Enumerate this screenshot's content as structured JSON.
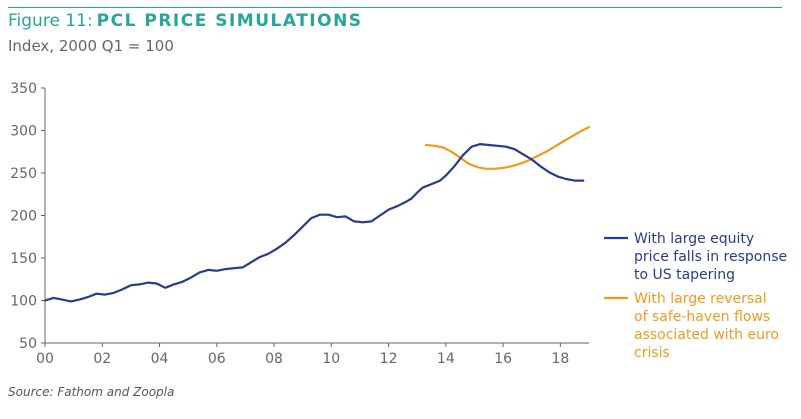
{
  "header": {
    "figure_label": "Figure 11:",
    "title": "PCL PRICE SIMULATIONS",
    "subtitle": "Index, 2000 Q1 = 100"
  },
  "footer": {
    "source": "Source: Fathom and Zoopla"
  },
  "colors": {
    "accent": "#2aa39a",
    "series_equity": "#2a3a8c",
    "series_safe_haven": "#f39a1e",
    "axis": "#666666"
  },
  "chart_data": {
    "type": "line",
    "title": "PCL PRICE SIMULATIONS",
    "xlabel": "",
    "ylabel": "Index, 2000 Q1 = 100",
    "xlim": [
      2000,
      2019
    ],
    "ylim": [
      50,
      350
    ],
    "x_ticks": [
      2000,
      2002,
      2004,
      2006,
      2008,
      2010,
      2012,
      2014,
      2016,
      2018
    ],
    "x_tick_labels": [
      "00",
      "02",
      "04",
      "06",
      "08",
      "10",
      "12",
      "14",
      "16",
      "18"
    ],
    "y_ticks": [
      50,
      100,
      150,
      200,
      250,
      300,
      350
    ],
    "y_tick_labels": [
      "50",
      "100",
      "150",
      "200",
      "250",
      "300",
      "350"
    ],
    "legend_position": "right",
    "series": [
      {
        "name": "With large equity price falls in response to US tapering",
        "legend_lines": [
          "With large equity",
          "price falls in response",
          "to US tapering"
        ],
        "color": "#2a3a8c",
        "x": [
          2000.0,
          2000.3,
          2000.6,
          2000.9,
          2001.2,
          2001.5,
          2001.8,
          2002.1,
          2002.4,
          2002.7,
          2003.0,
          2003.3,
          2003.6,
          2003.9,
          2004.2,
          2004.5,
          2004.8,
          2005.1,
          2005.4,
          2005.7,
          2006.0,
          2006.3,
          2006.6,
          2006.9,
          2007.2,
          2007.5,
          2007.8,
          2008.1,
          2008.4,
          2008.7,
          2009.0,
          2009.3,
          2009.6,
          2009.9,
          2010.2,
          2010.5,
          2010.8,
          2011.1,
          2011.4,
          2011.7,
          2012.0,
          2012.3,
          2012.6,
          2012.8,
          2013.0,
          2013.2,
          2013.5,
          2013.8,
          2014.0,
          2014.3,
          2014.6,
          2014.9,
          2015.2,
          2015.5,
          2015.8,
          2016.1,
          2016.4,
          2016.7,
          2017.0,
          2017.3,
          2017.6,
          2017.9,
          2018.2,
          2018.5,
          2018.8
        ],
        "values": [
          100,
          103,
          101,
          99,
          101,
          104,
          108,
          107,
          109,
          113,
          118,
          119,
          121,
          120,
          115,
          119,
          122,
          127,
          133,
          136,
          135,
          137,
          138,
          139,
          145,
          151,
          155,
          161,
          168,
          177,
          187,
          197,
          201,
          201,
          198,
          199,
          193,
          192,
          193,
          200,
          207,
          211,
          216,
          220,
          227,
          233,
          237,
          241,
          247,
          258,
          271,
          281,
          284,
          283,
          282,
          281,
          278,
          272,
          266,
          258,
          251,
          246,
          243,
          241,
          241
        ]
      },
      {
        "name": "With large reversal of safe-haven flows associated with euro crisis",
        "legend_lines": [
          "With large reversal",
          "of safe-haven flows",
          "associated with euro",
          "crisis"
        ],
        "color": "#f39a1e",
        "x": [
          2013.3,
          2013.6,
          2013.9,
          2014.2,
          2014.5,
          2014.8,
          2015.1,
          2015.4,
          2015.7,
          2016.0,
          2016.3,
          2016.6,
          2016.9,
          2017.2,
          2017.5,
          2017.8,
          2018.1,
          2018.4,
          2018.7,
          2019.0
        ],
        "values": [
          283,
          282,
          280,
          275,
          268,
          261,
          257,
          255,
          255,
          256,
          258,
          261,
          265,
          270,
          275,
          281,
          287,
          293,
          299,
          304
        ]
      }
    ]
  }
}
